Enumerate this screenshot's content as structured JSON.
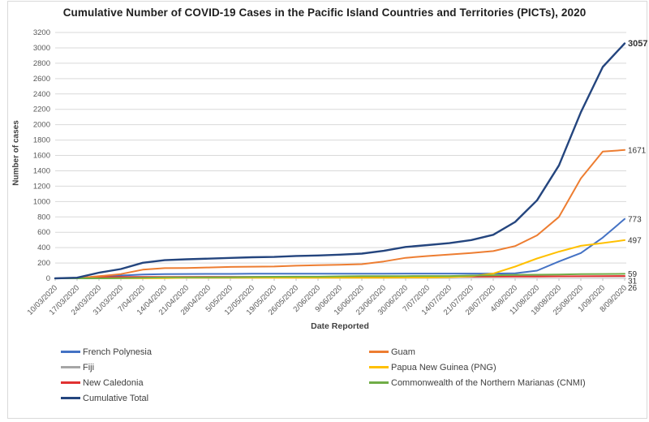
{
  "chart_data": {
    "type": "line",
    "title": "Cumulative Number of COVID-19 Cases in the Pacific Island Countries and Territories (PICTs), 2020",
    "xlabel": "Date Reported",
    "ylabel": "Number of cases",
    "ylim": [
      0,
      3200
    ],
    "ytick_step": 200,
    "grid": true,
    "legend_position": "bottom",
    "categories": [
      "10/03/2020",
      "17/03/2020",
      "24/03/2020",
      "31/03/2020",
      "7/04/2020",
      "14/04/2020",
      "21/04/2020",
      "28/04/2020",
      "5/05/2020",
      "12/05/2020",
      "19/05/2020",
      "26/05/2020",
      "2/06/2020",
      "9/06/2020",
      "16/06/2020",
      "23/06/2020",
      "30/06/2020",
      "7/07/2020",
      "14/07/2020",
      "21/07/2020",
      "28/07/2020",
      "4/08/2020",
      "11/08/2020",
      "18/08/2020",
      "25/08/2020",
      "1/09/2020",
      "8/09/2020"
    ],
    "series": [
      {
        "name": "French Polynesia",
        "color": "#4472C4",
        "end_label": "773",
        "label_bold": false,
        "values": [
          0,
          3,
          25,
          37,
          51,
          55,
          57,
          58,
          58,
          60,
          60,
          60,
          60,
          60,
          60,
          61,
          62,
          62,
          62,
          62,
          62,
          66,
          100,
          220,
          330,
          530,
          773
        ]
      },
      {
        "name": "Fiji",
        "color": "#A6A6A6",
        "end_label": "26",
        "label_bold": false,
        "values": [
          0,
          0,
          5,
          7,
          12,
          16,
          17,
          18,
          18,
          18,
          18,
          18,
          18,
          18,
          18,
          18,
          18,
          18,
          18,
          21,
          26,
          26,
          26,
          26,
          26,
          26,
          26
        ]
      },
      {
        "name": "New Caledonia",
        "color": "#E03131",
        "end_label": "31",
        "label_bold": false,
        "values": [
          0,
          2,
          14,
          18,
          18,
          18,
          18,
          18,
          18,
          18,
          18,
          18,
          19,
          20,
          21,
          21,
          21,
          21,
          21,
          22,
          22,
          23,
          23,
          26,
          27,
          29,
          31
        ]
      },
      {
        "name": "Guam",
        "color": "#ED7D31",
        "end_label": "1671",
        "label_bold": false,
        "values": [
          0,
          3,
          29,
          56,
          113,
          133,
          135,
          141,
          149,
          152,
          154,
          165,
          171,
          176,
          185,
          220,
          267,
          290,
          310,
          330,
          355,
          420,
          560,
          800,
          1300,
          1650,
          1671
        ]
      },
      {
        "name": "Papua New Guinea (PNG)",
        "color": "#FFC000",
        "end_label": "497",
        "label_bold": false,
        "values": [
          0,
          0,
          1,
          1,
          1,
          2,
          7,
          8,
          8,
          8,
          8,
          8,
          8,
          8,
          8,
          8,
          11,
          11,
          16,
          27,
          62,
          153,
          259,
          347,
          424,
          459,
          497
        ]
      },
      {
        "name": "Commonwealth of the Northern Marianas (CNMI)",
        "color": "#70AD47",
        "end_label": "59",
        "label_bold": false,
        "values": [
          0,
          0,
          0,
          2,
          8,
          13,
          14,
          14,
          15,
          19,
          21,
          22,
          22,
          26,
          30,
          30,
          30,
          31,
          31,
          37,
          40,
          46,
          48,
          51,
          55,
          57,
          59
        ]
      },
      {
        "name": "Cumulative Total",
        "color": "#24457E",
        "end_label": "3057",
        "label_bold": true,
        "values": [
          0,
          8,
          74,
          121,
          203,
          237,
          248,
          257,
          266,
          275,
          279,
          291,
          298,
          308,
          322,
          358,
          409,
          433,
          458,
          499,
          567,
          734,
          1016,
          1470,
          2162,
          2751,
          3057
        ]
      }
    ],
    "legend_columns": [
      [
        "French Polynesia",
        "Fiji",
        "New Caledonia",
        "Cumulative Total"
      ],
      [
        "Guam",
        "Papua New Guinea (PNG)",
        "Commonwealth of the Northern Marianas (CNMI)"
      ]
    ]
  }
}
